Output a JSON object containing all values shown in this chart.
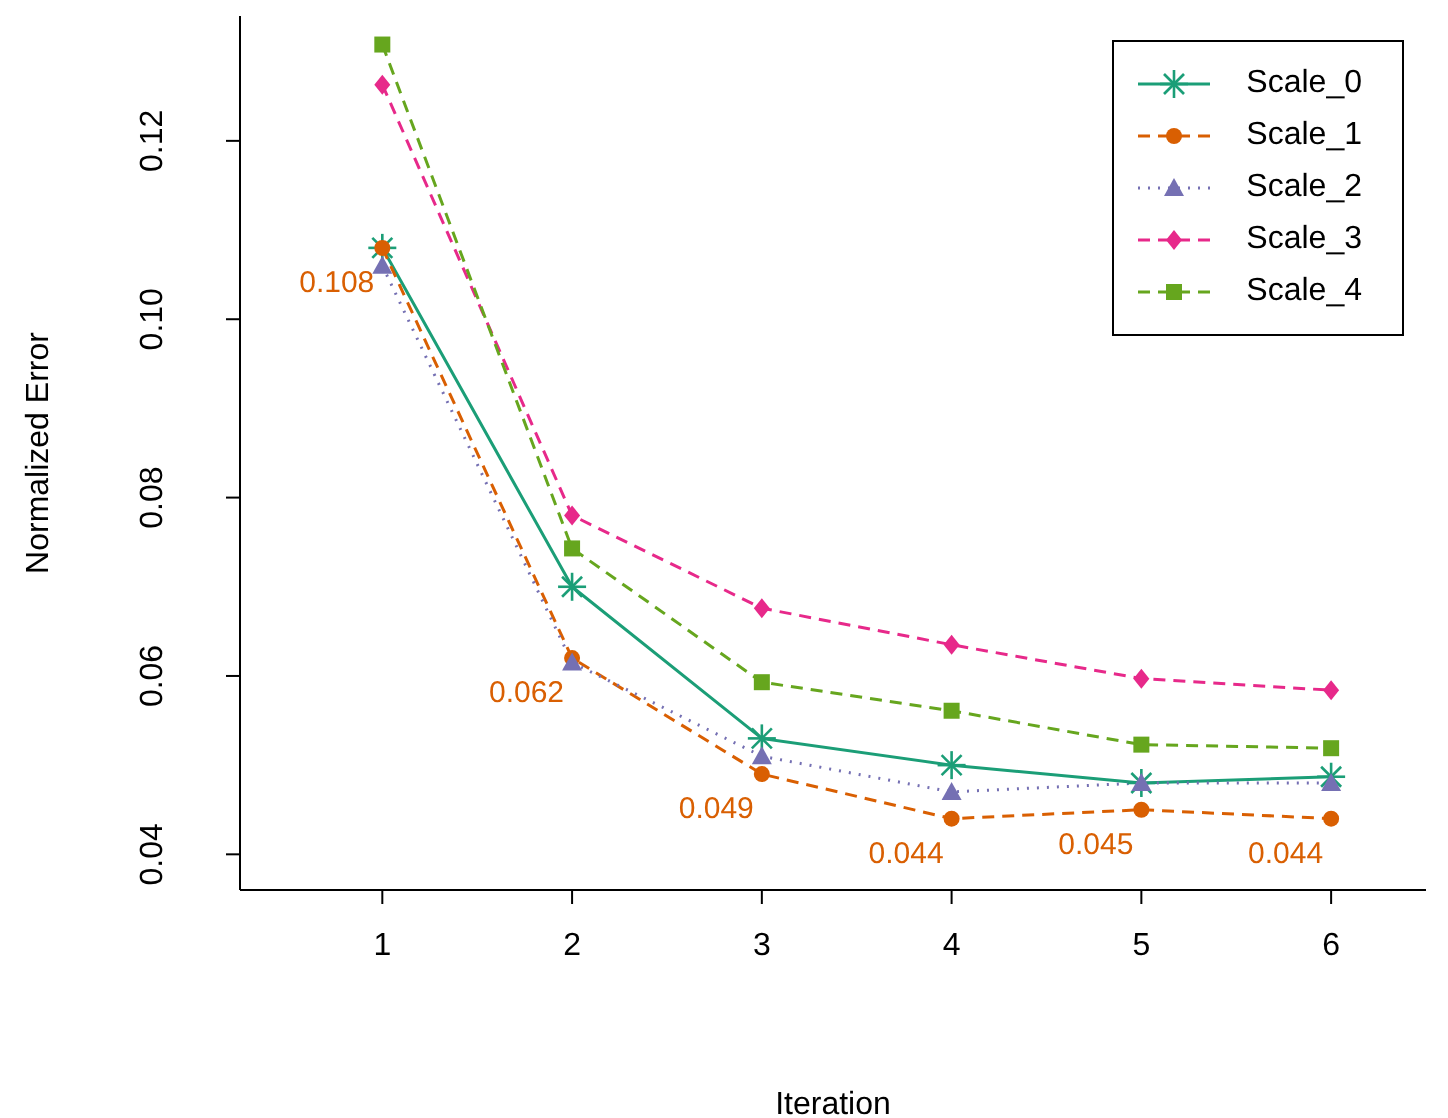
{
  "chart_data": {
    "type": "line",
    "xlabel": "Iteration",
    "ylabel": "Normalized Error",
    "x": [
      1,
      2,
      3,
      4,
      5,
      6
    ],
    "xlim": [
      0.25,
      6.5
    ],
    "xticks": [
      1,
      2,
      3,
      4,
      5,
      6
    ],
    "ylim": [
      0.036,
      0.134
    ],
    "yticks": [
      {
        "value": 0.04,
        "label": "0.04"
      },
      {
        "value": 0.06,
        "label": "0.06"
      },
      {
        "value": 0.08,
        "label": "0.08"
      },
      {
        "value": 0.1,
        "label": "0.10"
      },
      {
        "value": 0.12,
        "label": "0.12"
      }
    ],
    "grid": false,
    "legend": "top right",
    "series": [
      {
        "name": "Scale_0",
        "color": "#1b9e77",
        "marker": "cross",
        "line_style": "solid",
        "values": [
          0.108,
          0.07,
          0.053,
          0.05,
          0.048,
          0.0487
        ]
      },
      {
        "name": "Scale_1",
        "color": "#d95f02",
        "marker": "circle",
        "line_style": "dashed",
        "values": [
          0.108,
          0.062,
          0.049,
          0.044,
          0.045,
          0.044
        ],
        "value_labels": [
          "0.108",
          "0.062",
          "0.049",
          "0.044",
          "0.045",
          "0.044"
        ]
      },
      {
        "name": "Scale_2",
        "color": "#7570b3",
        "marker": "triangle",
        "line_style": "dotted",
        "values": [
          0.106,
          0.0615,
          0.051,
          0.047,
          0.048,
          0.048
        ]
      },
      {
        "name": "Scale_3",
        "color": "#e7298a",
        "marker": "diamond",
        "line_style": "dashed",
        "values": [
          0.1263,
          0.078,
          0.0676,
          0.0635,
          0.0597,
          0.0584
        ]
      },
      {
        "name": "Scale_4",
        "color": "#66a61e",
        "marker": "square",
        "line_style": "dashed",
        "values": [
          0.1308,
          0.0743,
          0.0593,
          0.0561,
          0.0523,
          0.0519
        ]
      }
    ]
  }
}
